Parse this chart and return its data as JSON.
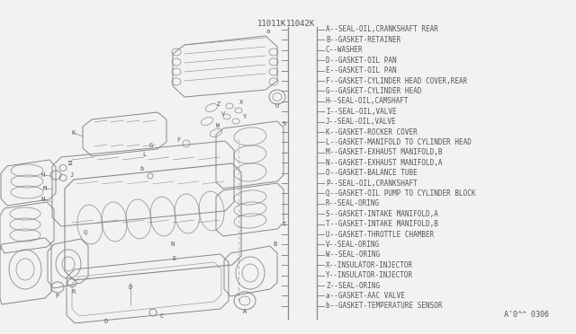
{
  "bg_color": "#f2f2f2",
  "part_numbers": [
    "11011K",
    "11042K"
  ],
  "legend_items": [
    "A--SEAL-OIL,CRANKSHAFT REAR",
    "B--GASKET-RETAINER",
    "C--WASHER",
    "D--GASKET-OIL PAN",
    "E--GASKET-OIL PAN",
    "F--GASKET-CYLINDER HEAD COVER,REAR",
    "G--GASKET-CYLINDER HEAD",
    "H--SEAL-OIL,CAMSHAFT",
    "I--SEAL-OIL,VALVE",
    "J--SEAL-OIL,VALVE",
    "K--GASKET-ROCKER COVER",
    "L--GASKET-MANIFOLD TO CYLINDER HEAD",
    "M--GASKET-EXHAUST MANIFOLD,B",
    "N--GASKET-EXHAUST MANIFOLD,A",
    "O--GASKET-BALANCE TUBE",
    "P--SEAL-OIL,CRANKSHAFT",
    "Q--GASKET-OIL PUMP TO CYLINDER BLOCK",
    "R--SEAL-ORING",
    "S--GASKET-INTAKE MANIFOLD,A",
    "T--GASKET-INTAKE MANIFOLD,B",
    "U--GASKET-THROTTLE CHAMBER",
    "V--SEAL-ORING",
    "W--SEAL-ORING",
    "X--INSULATOR-INJECTOR",
    "Y--INSULATOR-INJECTOR",
    "Z--SEAL-ORING",
    "a--GASKET-AAC VALVE",
    "b--GASKET-TEMPERATURE SENSOR"
  ],
  "footer": "A'0^^ 0306",
  "line_color": "#888888",
  "text_color": "#555555",
  "diagram_line_color": "#888888"
}
